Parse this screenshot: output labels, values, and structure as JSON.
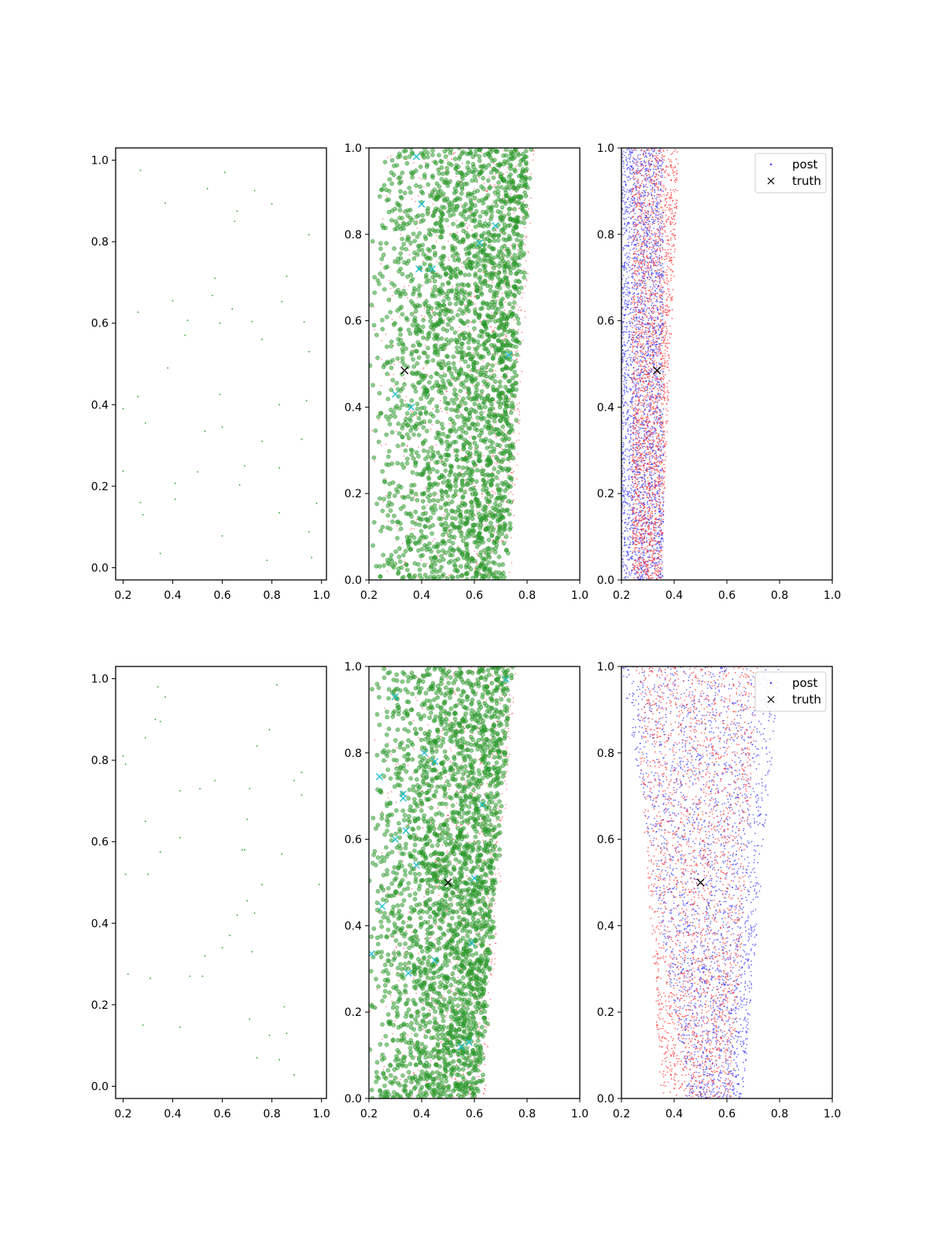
{
  "chart_data": [
    {
      "panel": "top-left",
      "type": "scatter",
      "xlim": [
        0.17,
        1.02
      ],
      "ylim": [
        -0.03,
        1.03
      ],
      "xticks": [
        "0.2",
        "0.4",
        "0.6",
        "0.8",
        "1.0"
      ],
      "yticks": [
        "0.0",
        "0.2",
        "0.4",
        "0.6",
        "0.8",
        "1.0"
      ],
      "series": [
        {
          "color": "#2ca02c",
          "size": "tiny",
          "shape": "dot",
          "points": [
            [
              0.27,
              0.975
            ],
            [
              0.61,
              0.97
            ],
            [
              0.37,
              0.895
            ],
            [
              0.54,
              0.93
            ],
            [
              0.73,
              0.925
            ],
            [
              0.66,
              0.875
            ],
            [
              0.8,
              0.893
            ],
            [
              0.65,
              0.85
            ],
            [
              0.95,
              0.817
            ],
            [
              0.86,
              0.715
            ],
            [
              0.57,
              0.71
            ],
            [
              0.56,
              0.668
            ],
            [
              0.4,
              0.655
            ],
            [
              0.84,
              0.653
            ],
            [
              0.64,
              0.635
            ],
            [
              0.26,
              0.627
            ],
            [
              0.46,
              0.607
            ],
            [
              0.59,
              0.6
            ],
            [
              0.72,
              0.604
            ],
            [
              0.93,
              0.603
            ],
            [
              0.45,
              0.57
            ],
            [
              0.76,
              0.56
            ],
            [
              0.95,
              0.53
            ],
            [
              0.38,
              0.49
            ],
            [
              0.26,
              0.42
            ],
            [
              0.59,
              0.425
            ],
            [
              0.2,
              0.39
            ],
            [
              0.83,
              0.4
            ],
            [
              0.94,
              0.41
            ],
            [
              0.29,
              0.355
            ],
            [
              0.6,
              0.345
            ],
            [
              0.53,
              0.335
            ],
            [
              0.76,
              0.31
            ],
            [
              0.92,
              0.315
            ],
            [
              0.2,
              0.237
            ],
            [
              0.5,
              0.235
            ],
            [
              0.69,
              0.25
            ],
            [
              0.83,
              0.245
            ],
            [
              0.41,
              0.207
            ],
            [
              0.67,
              0.203
            ],
            [
              0.41,
              0.168
            ],
            [
              0.27,
              0.16
            ],
            [
              0.98,
              0.158
            ],
            [
              0.28,
              0.13
            ],
            [
              0.83,
              0.135
            ],
            [
              0.6,
              0.078
            ],
            [
              0.95,
              0.088
            ],
            [
              0.35,
              0.035
            ],
            [
              0.78,
              0.018
            ],
            [
              0.96,
              0.025
            ]
          ]
        }
      ]
    },
    {
      "panel": "top-middle",
      "type": "scatter",
      "xlim": [
        0.2,
        1.0
      ],
      "ylim": [
        0.0,
        1.0
      ],
      "xticks": [
        "0.2",
        "0.4",
        "0.6",
        "0.8",
        "1.0"
      ],
      "yticks": [
        "0.0",
        "0.2",
        "0.4",
        "0.6",
        "0.8",
        "1.0"
      ],
      "band": {
        "left_bottom": 0.2,
        "left_top": 0.2,
        "right_bottom": 0.72,
        "right_top": 0.81,
        "n_green": 2600,
        "n_red": 1000
      },
      "cyan_x": [
        [
          0.38,
          0.98
        ],
        [
          0.4,
          0.87
        ],
        [
          0.39,
          0.72
        ],
        [
          0.44,
          0.72
        ],
        [
          0.3,
          0.43
        ],
        [
          0.36,
          0.4
        ],
        [
          0.73,
          0.52
        ],
        [
          0.62,
          0.78
        ],
        [
          0.68,
          0.82
        ]
      ],
      "truth": [
        0.335,
        0.485
      ]
    },
    {
      "panel": "top-right",
      "type": "scatter",
      "xlim": [
        0.2,
        1.0
      ],
      "ylim": [
        0.0,
        1.0
      ],
      "xticks": [
        "0.2",
        "0.4",
        "0.6",
        "0.8",
        "1.0"
      ],
      "yticks": [
        "0.0",
        "0.2",
        "0.4",
        "0.6",
        "0.8",
        "1.0"
      ],
      "blue_band": {
        "lo": 0.2,
        "hi": 0.36,
        "n": 2600
      },
      "red_band": {
        "lo": 0.24,
        "hi_bottom": 0.35,
        "hi_top": 0.42,
        "n": 2200
      },
      "truth": [
        0.335,
        0.485
      ],
      "legend": {
        "placement": "top-right",
        "items": [
          "post",
          "truth"
        ]
      }
    },
    {
      "panel": "bottom-left",
      "type": "scatter",
      "xlim": [
        0.17,
        1.02
      ],
      "ylim": [
        -0.03,
        1.03
      ],
      "xticks": [
        "0.2",
        "0.4",
        "0.6",
        "0.8",
        "1.0"
      ],
      "yticks": [
        "0.0",
        "0.2",
        "0.4",
        "0.6",
        "0.8",
        "1.0"
      ],
      "series": [
        {
          "color": "#2ca02c",
          "size": "tiny",
          "shape": "dot",
          "points": [
            [
              0.34,
              0.98
            ],
            [
              0.82,
              0.985
            ],
            [
              0.37,
              0.955
            ],
            [
              0.33,
              0.9
            ],
            [
              0.35,
              0.895
            ],
            [
              0.79,
              0.875
            ],
            [
              0.29,
              0.855
            ],
            [
              0.74,
              0.835
            ],
            [
              0.2,
              0.81
            ],
            [
              0.21,
              0.79
            ],
            [
              0.57,
              0.75
            ],
            [
              0.89,
              0.75
            ],
            [
              0.92,
              0.77
            ],
            [
              0.51,
              0.73
            ],
            [
              0.71,
              0.73
            ],
            [
              0.43,
              0.725
            ],
            [
              0.92,
              0.715
            ],
            [
              0.29,
              0.65
            ],
            [
              0.7,
              0.655
            ],
            [
              0.43,
              0.61
            ],
            [
              0.68,
              0.58
            ],
            [
              0.69,
              0.58
            ],
            [
              0.35,
              0.575
            ],
            [
              0.84,
              0.57
            ],
            [
              0.21,
              0.52
            ],
            [
              0.3,
              0.52
            ],
            [
              0.99,
              0.495
            ],
            [
              0.76,
              0.495
            ],
            [
              0.7,
              0.455
            ],
            [
              0.66,
              0.42
            ],
            [
              0.73,
              0.425
            ],
            [
              0.63,
              0.37
            ],
            [
              0.6,
              0.34
            ],
            [
              0.53,
              0.32
            ],
            [
              0.72,
              0.33
            ],
            [
              0.22,
              0.275
            ],
            [
              0.47,
              0.27
            ],
            [
              0.31,
              0.265
            ],
            [
              0.52,
              0.27
            ],
            [
              0.85,
              0.195
            ],
            [
              0.71,
              0.165
            ],
            [
              0.28,
              0.15
            ],
            [
              0.43,
              0.145
            ],
            [
              0.86,
              0.13
            ],
            [
              0.79,
              0.125
            ],
            [
              0.74,
              0.07
            ],
            [
              0.83,
              0.065
            ],
            [
              0.89,
              0.028
            ]
          ]
        }
      ]
    },
    {
      "panel": "bottom-middle",
      "type": "scatter",
      "xlim": [
        0.2,
        1.0
      ],
      "ylim": [
        0.0,
        1.0
      ],
      "xticks": [
        "0.2",
        "0.4",
        "0.6",
        "0.8",
        "1.0"
      ],
      "yticks": [
        "0.0",
        "0.2",
        "0.4",
        "0.6",
        "0.8",
        "1.0"
      ],
      "band": {
        "left_bottom": 0.2,
        "left_top": 0.2,
        "right_bottom": 0.62,
        "right_top": 0.74,
        "n_green": 2600,
        "n_red": 1000
      },
      "cyan_x": [
        [
          0.3,
          0.93
        ],
        [
          0.72,
          0.97
        ],
        [
          0.24,
          0.745
        ],
        [
          0.33,
          0.705
        ],
        [
          0.33,
          0.695
        ],
        [
          0.41,
          0.8
        ],
        [
          0.45,
          0.78
        ],
        [
          0.34,
          0.62
        ],
        [
          0.3,
          0.6
        ],
        [
          0.38,
          0.54
        ],
        [
          0.25,
          0.445
        ],
        [
          0.21,
          0.335
        ],
        [
          0.35,
          0.29
        ],
        [
          0.45,
          0.32
        ],
        [
          0.59,
          0.36
        ],
        [
          0.55,
          0.12
        ],
        [
          0.58,
          0.13
        ],
        [
          0.6,
          0.51
        ],
        [
          0.63,
          0.68
        ]
      ],
      "truth": [
        0.5,
        0.5
      ]
    },
    {
      "panel": "bottom-right",
      "type": "scatter",
      "xlim": [
        0.2,
        1.0
      ],
      "ylim": [
        0.0,
        1.0
      ],
      "xticks": [
        "0.2",
        "0.4",
        "0.6",
        "0.8",
        "1.0"
      ],
      "yticks": [
        "0.0",
        "0.2",
        "0.4",
        "0.6",
        "0.8",
        "1.0"
      ],
      "blue_band": {
        "lo_bottom": 0.45,
        "lo_top": 0.2,
        "hi_bottom": 0.66,
        "hi_top": 0.8,
        "n": 2400
      },
      "red_band": {
        "lo_bottom": 0.35,
        "lo_top": 0.25,
        "hi_bottom": 0.62,
        "hi_top": 0.72,
        "n": 2200
      },
      "truth": [
        0.5,
        0.5
      ],
      "legend": {
        "placement": "top-right",
        "items": [
          "post",
          "truth"
        ]
      }
    }
  ],
  "colors": {
    "green": "#2ca02c",
    "dark_green": "#1a7a1a",
    "red": "#ff3030",
    "blue": "#3333ff",
    "cyan": "#17becf",
    "black": "#000000"
  }
}
